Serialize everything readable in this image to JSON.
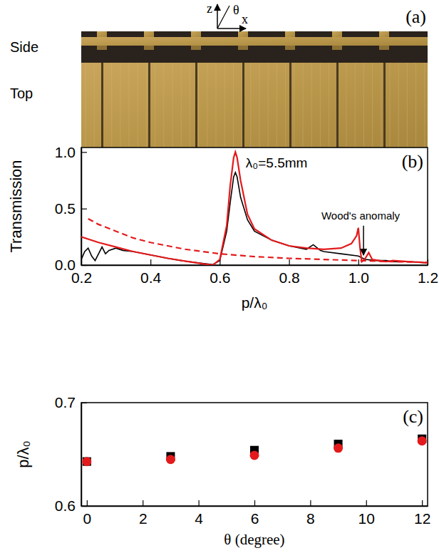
{
  "chart_data": [
    {
      "type": "image",
      "title": "(a)",
      "annotations": [
        {
          "text": "Side"
        },
        {
          "text": "Top"
        },
        {
          "text": "z"
        },
        {
          "text": "θ"
        },
        {
          "text": "x"
        }
      ]
    },
    {
      "type": "line",
      "title": "(b)",
      "x_label": "p/λ₀",
      "y_label": "Transmission",
      "xlim": [
        0.2,
        1.2
      ],
      "xticks": [
        0.2,
        0.4,
        0.6,
        0.8,
        {
          "value": 1,
          "label": "1.0"
        },
        1.2
      ],
      "ylim": [
        0,
        1.04
      ],
      "yticks": [
        {
          "value": 0,
          "label": "0.0"
        },
        0.5,
        {
          "value": 1,
          "label": "1.0"
        }
      ],
      "annotations": [
        {
          "text": "λ₀=5.5mm"
        },
        {
          "text": "Wood's anomaly"
        }
      ],
      "series": [
        {
          "color": "#000000",
          "line_style": "solid",
          "x": [
            0.2,
            0.21,
            0.22,
            0.23,
            0.24,
            0.25,
            0.26,
            0.27,
            0.28,
            0.3,
            0.32,
            0.35,
            0.4,
            0.45,
            0.5,
            0.55,
            0.58,
            0.6,
            0.62,
            0.63,
            0.64,
            0.645,
            0.65,
            0.66,
            0.68,
            0.7,
            0.75,
            0.8,
            0.85,
            0.87,
            0.89,
            0.9,
            0.95,
            1.0,
            1.02,
            1.05,
            1.08,
            1.1,
            1.15,
            1.2
          ],
          "values": [
            0.05,
            0.12,
            0.15,
            0.08,
            0.04,
            0.1,
            0.16,
            0.1,
            0.13,
            0.15,
            0.13,
            0.12,
            0.09,
            0.06,
            0.035,
            0.015,
            0.005,
            0.04,
            0.3,
            0.55,
            0.78,
            0.82,
            0.78,
            0.6,
            0.4,
            0.3,
            0.22,
            0.17,
            0.14,
            0.18,
            0.13,
            0.12,
            0.1,
            0.08,
            0.05,
            0.04,
            0.04,
            0.03,
            0.03,
            0.02
          ]
        },
        {
          "color": "#e31a1c",
          "line_style": "solid",
          "x": [
            0.2,
            0.25,
            0.3,
            0.35,
            0.4,
            0.45,
            0.5,
            0.55,
            0.58,
            0.6,
            0.62,
            0.63,
            0.64,
            0.645,
            0.65,
            0.66,
            0.68,
            0.7,
            0.75,
            0.8,
            0.85,
            0.9,
            0.95,
            0.98,
            0.995,
            1.0,
            1.005,
            1.01,
            1.02,
            1.03,
            1.04,
            1.06,
            1.08,
            1.1,
            1.15,
            1.2
          ],
          "values": [
            0.25,
            0.2,
            0.16,
            0.12,
            0.09,
            0.06,
            0.035,
            0.012,
            0.0,
            0.05,
            0.35,
            0.7,
            0.95,
            1.0,
            0.95,
            0.75,
            0.45,
            0.32,
            0.22,
            0.17,
            0.15,
            0.14,
            0.15,
            0.19,
            0.26,
            0.33,
            0.15,
            0.03,
            0.06,
            0.11,
            0.05,
            0.04,
            0.03,
            0.04,
            0.03,
            0.02
          ]
        },
        {
          "color": "#e31a1c",
          "line_style": "dashed",
          "x": [
            0.22,
            0.25,
            0.3,
            0.35,
            0.4,
            0.45,
            0.5,
            0.6,
            0.7,
            0.8,
            0.9,
            1.0,
            1.1,
            1.2
          ],
          "values": [
            0.41,
            0.36,
            0.3,
            0.24,
            0.2,
            0.17,
            0.14,
            0.1,
            0.075,
            0.06,
            0.05,
            0.04,
            0.03,
            0.025
          ]
        }
      ]
    },
    {
      "type": "scatter",
      "title": "(c)",
      "x_label": "θ (degree)",
      "y_label": "p/λ₀",
      "xlim": [
        -0.2,
        12.2
      ],
      "xticks": [
        0,
        2,
        4,
        6,
        8,
        10,
        12
      ],
      "ylim": [
        0.6,
        0.7
      ],
      "yticks": [
        0.6,
        0.7
      ],
      "series": [
        {
          "color": "#000000",
          "marker": "square",
          "x": [
            0,
            3,
            6,
            9,
            12
          ],
          "values": [
            0.643,
            0.648,
            0.654,
            0.66,
            0.665
          ]
        },
        {
          "color": "#e31a1c",
          "marker": "circle",
          "x": [
            0,
            3,
            6,
            9,
            12
          ],
          "values": [
            0.643,
            0.645,
            0.649,
            0.656,
            0.663
          ]
        }
      ]
    }
  ]
}
